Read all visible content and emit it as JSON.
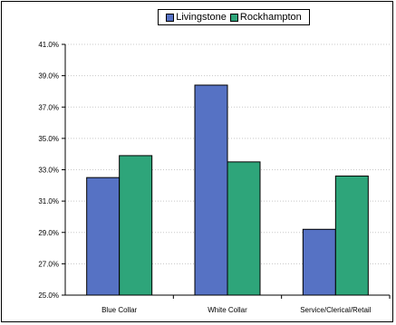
{
  "chart_data": {
    "type": "bar",
    "categories": [
      "Blue Collar",
      "White Collar",
      "Service/Clerical/Retail"
    ],
    "series": [
      {
        "name": "Livingstone",
        "values": [
          32.5,
          38.4,
          29.2
        ],
        "color": "#5672C4"
      },
      {
        "name": "Rockhampton",
        "values": [
          33.9,
          33.5,
          32.6
        ],
        "color": "#2EA57A"
      }
    ],
    "ylim": [
      25.0,
      41.0
    ],
    "yticks": [
      "25.0%",
      "27.0%",
      "29.0%",
      "31.0%",
      "33.0%",
      "35.0%",
      "37.0%",
      "39.0%",
      "41.0%"
    ],
    "grid": true,
    "legend": "top"
  }
}
